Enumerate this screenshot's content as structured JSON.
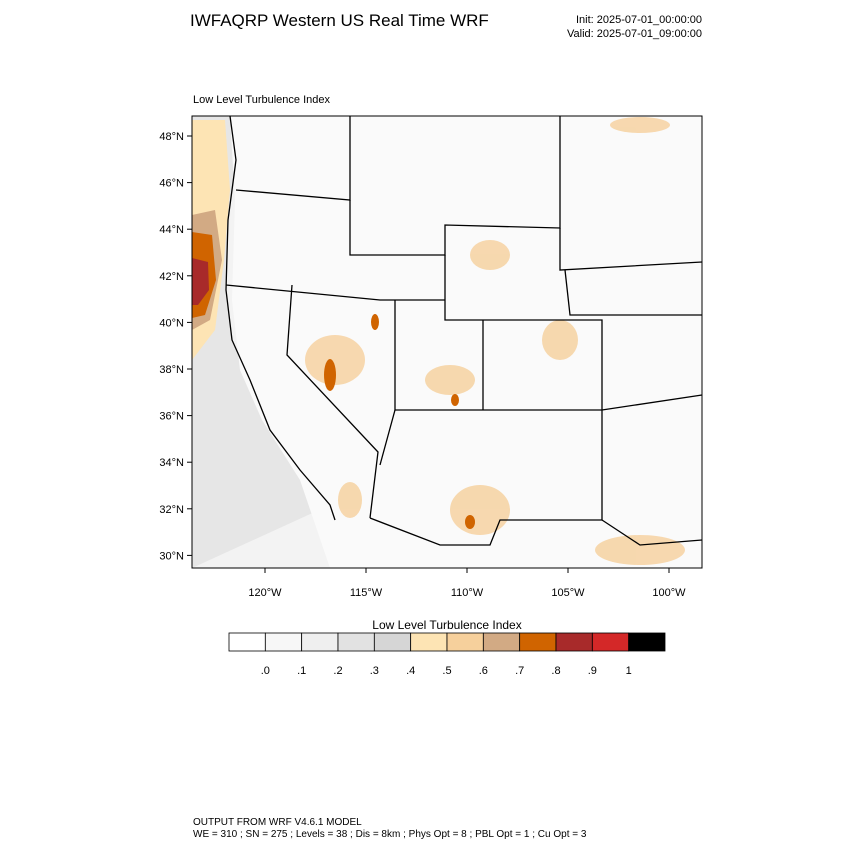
{
  "header": {
    "title": "IWFAQRP Western US Real Time WRF",
    "init": "Init: 2025-07-01_00:00:00",
    "valid": "Valid: 2025-07-01_09:00:00"
  },
  "map": {
    "title": "Low Level Turbulence Index",
    "lat_labels": [
      "48°N",
      "46°N",
      "44°N",
      "42°N",
      "40°N",
      "38°N",
      "36°N",
      "34°N",
      "32°N",
      "30°N"
    ],
    "lon_labels": [
      "120°W",
      "115°W",
      "110°W",
      "105°W",
      "100°W"
    ]
  },
  "legend": {
    "title": "Low Level Turbulence Index",
    "colors": [
      "#ffffff",
      "#f7f7f7",
      "#efefef",
      "#e2e2e2",
      "#d6d6d6",
      "#fde4b4",
      "#f6d09c",
      "#d2aa84",
      "#d06400",
      "#a82a2a",
      "#d42828",
      "#000000"
    ],
    "labels": [
      ".0",
      ".1",
      ".2",
      ".3",
      ".4",
      ".5",
      ".6",
      ".7",
      ".8",
      ".9",
      "1"
    ]
  },
  "footer": {
    "line1": "OUTPUT FROM WRF V4.6.1 MODEL",
    "line2": "WE = 310 ; SN = 275 ; Levels = 38 ; Dis = 8km ; Phys Opt = 8 ; PBL Opt = 1 ; Cu Opt = 3"
  }
}
